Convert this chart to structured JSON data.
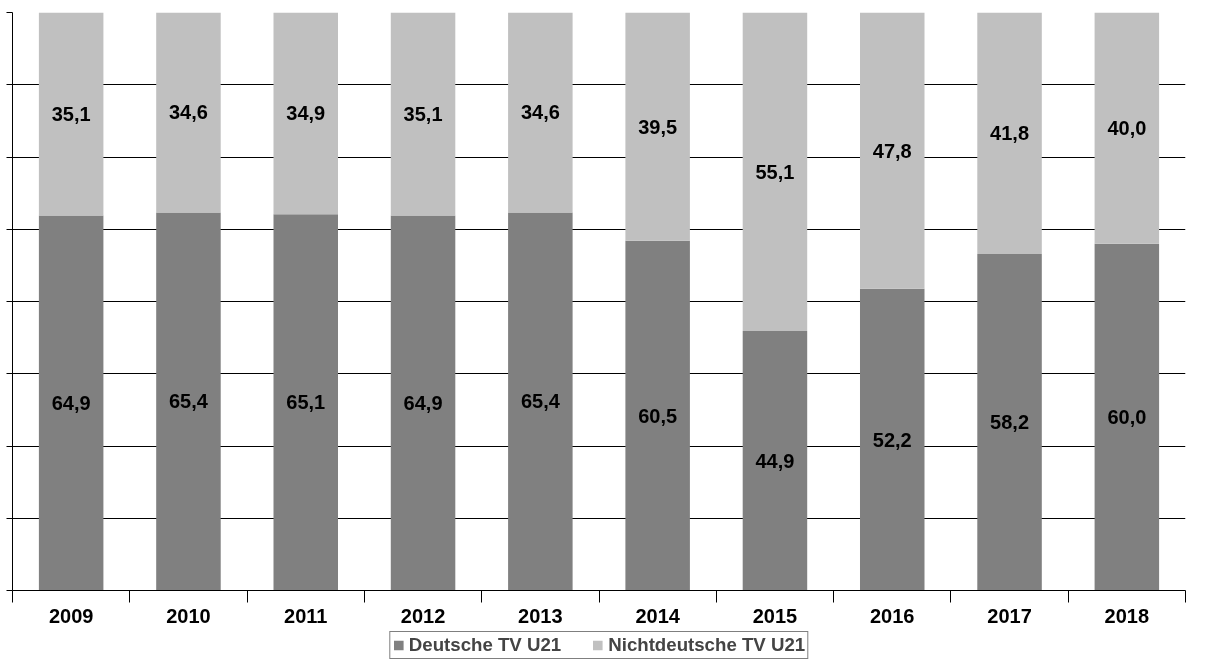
{
  "chart_data": {
    "type": "bar",
    "stacked": true,
    "categories": [
      "2009",
      "2010",
      "2011",
      "2012",
      "2013",
      "2014",
      "2015",
      "2016",
      "2017",
      "2018"
    ],
    "series": [
      {
        "name": "Deutsche TV U21",
        "color": "#808080",
        "values": [
          64.9,
          65.4,
          65.1,
          64.9,
          65.4,
          60.5,
          44.9,
          52.2,
          58.2,
          60.0
        ],
        "value_labels": [
          "64,9",
          "65,4",
          "65,1",
          "64,9",
          "65,4",
          "60,5",
          "44,9",
          "52,2",
          "58,2",
          "60,0"
        ]
      },
      {
        "name": "Nichtdeutsche TV U21",
        "color": "#c0c0c0",
        "values": [
          35.1,
          34.6,
          34.9,
          35.1,
          34.6,
          39.5,
          55.1,
          47.8,
          41.8,
          40.0
        ],
        "value_labels": [
          "35,1",
          "34,6",
          "34,9",
          "35,1",
          "34,6",
          "39,5",
          "55,1",
          "47,8",
          "41,8",
          "40,0"
        ]
      }
    ],
    "grid": "y",
    "legend": "bottom",
    "tick_labels": "x"
  }
}
